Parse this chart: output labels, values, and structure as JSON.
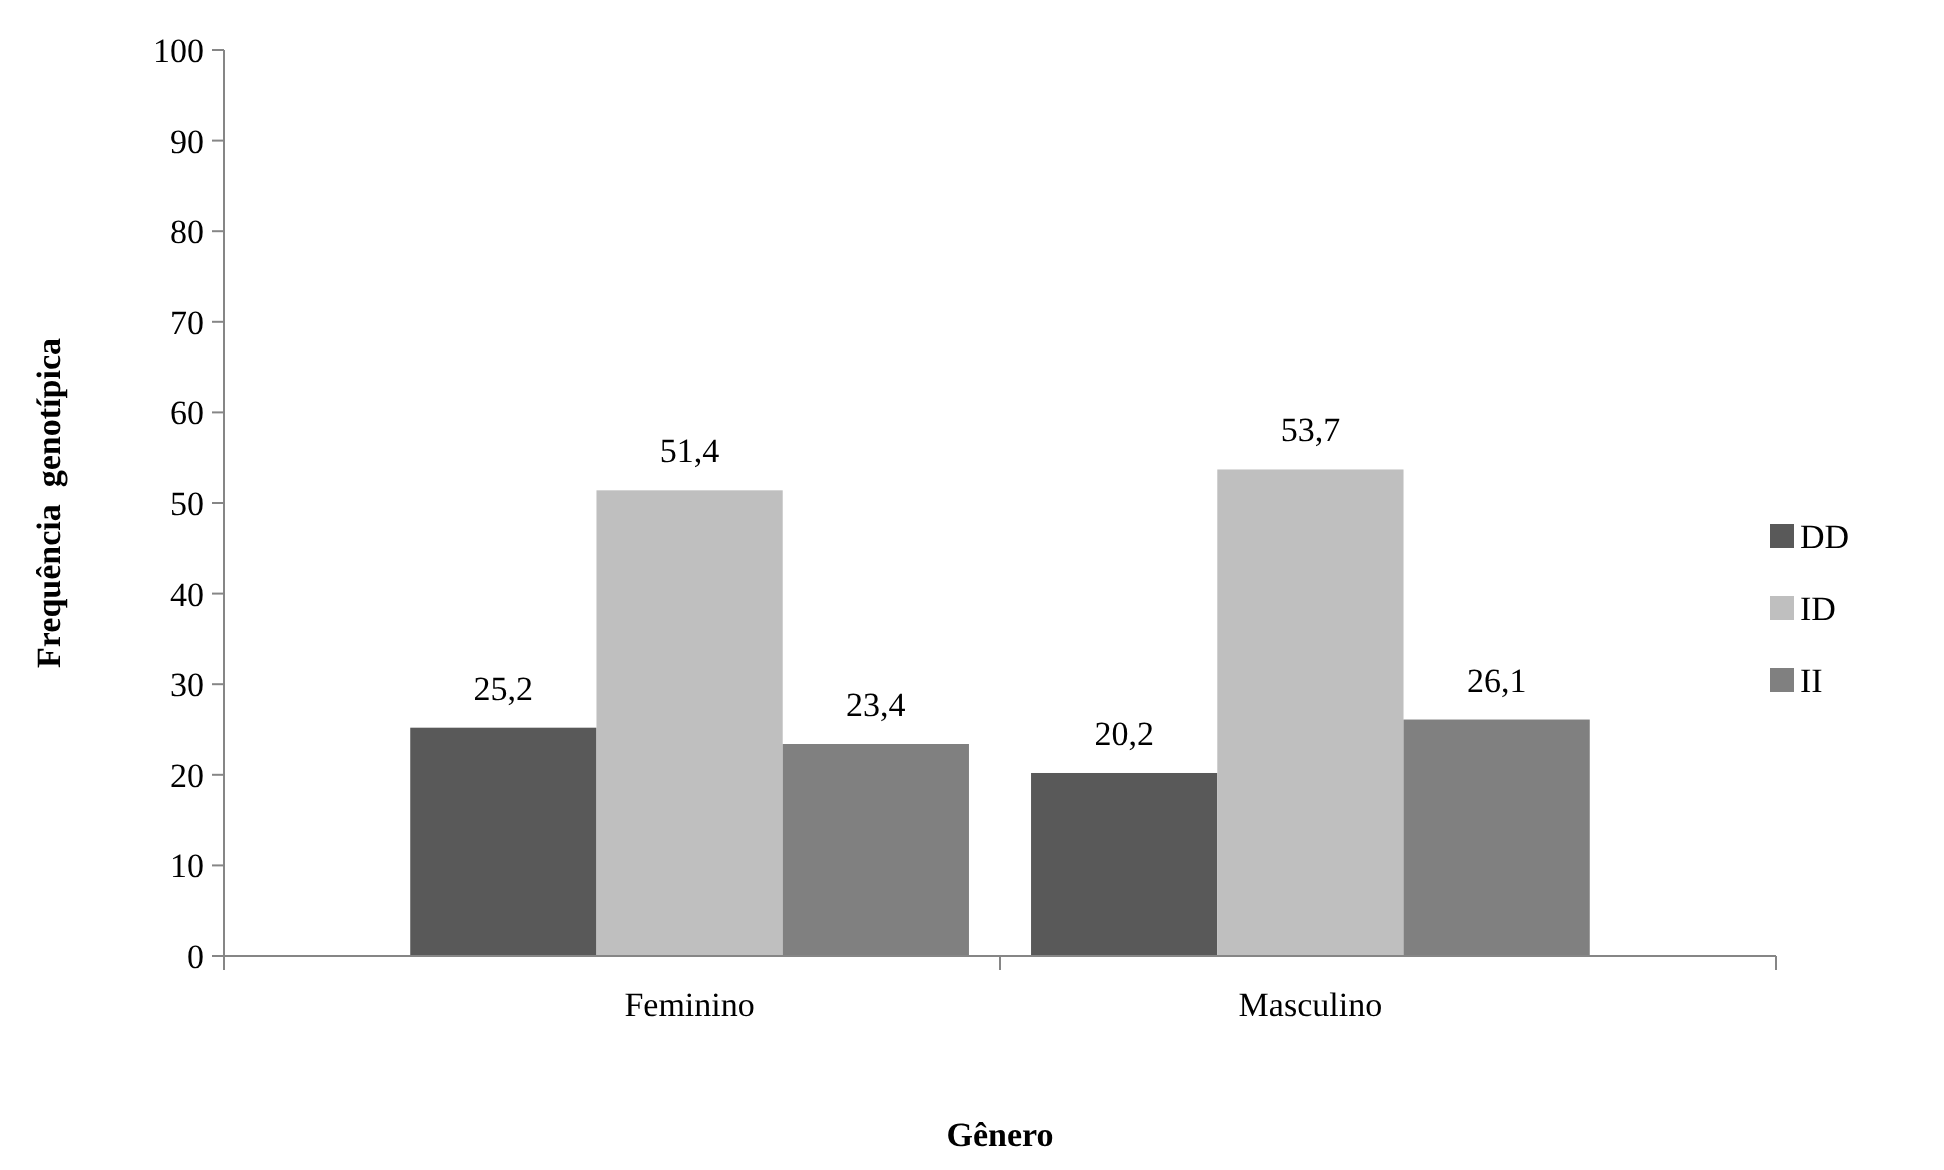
{
  "chart_data": {
    "type": "bar",
    "xlabel": "Gênero",
    "ylabel": "Frequência  genotípica",
    "categories": [
      "Feminino",
      "Masculino"
    ],
    "series": [
      {
        "name": "DD",
        "color": "#595959",
        "values": [
          25.2,
          20.2
        ],
        "value_labels": [
          "25,2",
          "20,2"
        ]
      },
      {
        "name": "ID",
        "color": "#bfbfbf",
        "values": [
          51.4,
          53.7
        ],
        "value_labels": [
          "51,4",
          "53,7"
        ]
      },
      {
        "name": "II",
        "color": "#808080",
        "values": [
          23.4,
          26.1
        ],
        "value_labels": [
          "23,4",
          "26,1"
        ]
      }
    ],
    "ylim": [
      0,
      100
    ],
    "yticks": [
      0,
      10,
      20,
      30,
      40,
      50,
      60,
      70,
      80,
      90,
      100
    ],
    "grid": false,
    "legend": "right"
  }
}
